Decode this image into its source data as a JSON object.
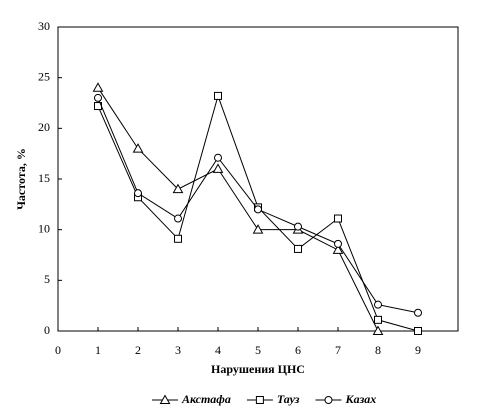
{
  "chart_data": {
    "type": "line",
    "xlabel": "Нарушения ЦНС",
    "ylabel": "Частота, %",
    "x": [
      1,
      2,
      3,
      4,
      5,
      6,
      7,
      8,
      9
    ],
    "xlim": [
      0,
      10
    ],
    "xticks": [
      0,
      1,
      2,
      3,
      4,
      5,
      6,
      7,
      8,
      9
    ],
    "ylim": [
      0,
      30
    ],
    "yticks": [
      0,
      5,
      10,
      15,
      20,
      25,
      30
    ],
    "series": [
      {
        "name": "Акстафа",
        "color": "#000000",
        "marker": "triangle",
        "values": [
          24,
          18,
          14,
          16,
          10,
          10,
          8,
          0,
          null
        ]
      },
      {
        "name": "Тауз",
        "color": "#000000",
        "marker": "square",
        "values": [
          22.2,
          13.2,
          9.1,
          23.2,
          12.2,
          8.1,
          11.1,
          1.1,
          0
        ]
      },
      {
        "name": "Казах",
        "color": "#000000",
        "marker": "circle",
        "values": [
          23,
          13.6,
          11.1,
          17.1,
          12,
          10.3,
          8.6,
          2.6,
          1.8
        ]
      }
    ]
  }
}
